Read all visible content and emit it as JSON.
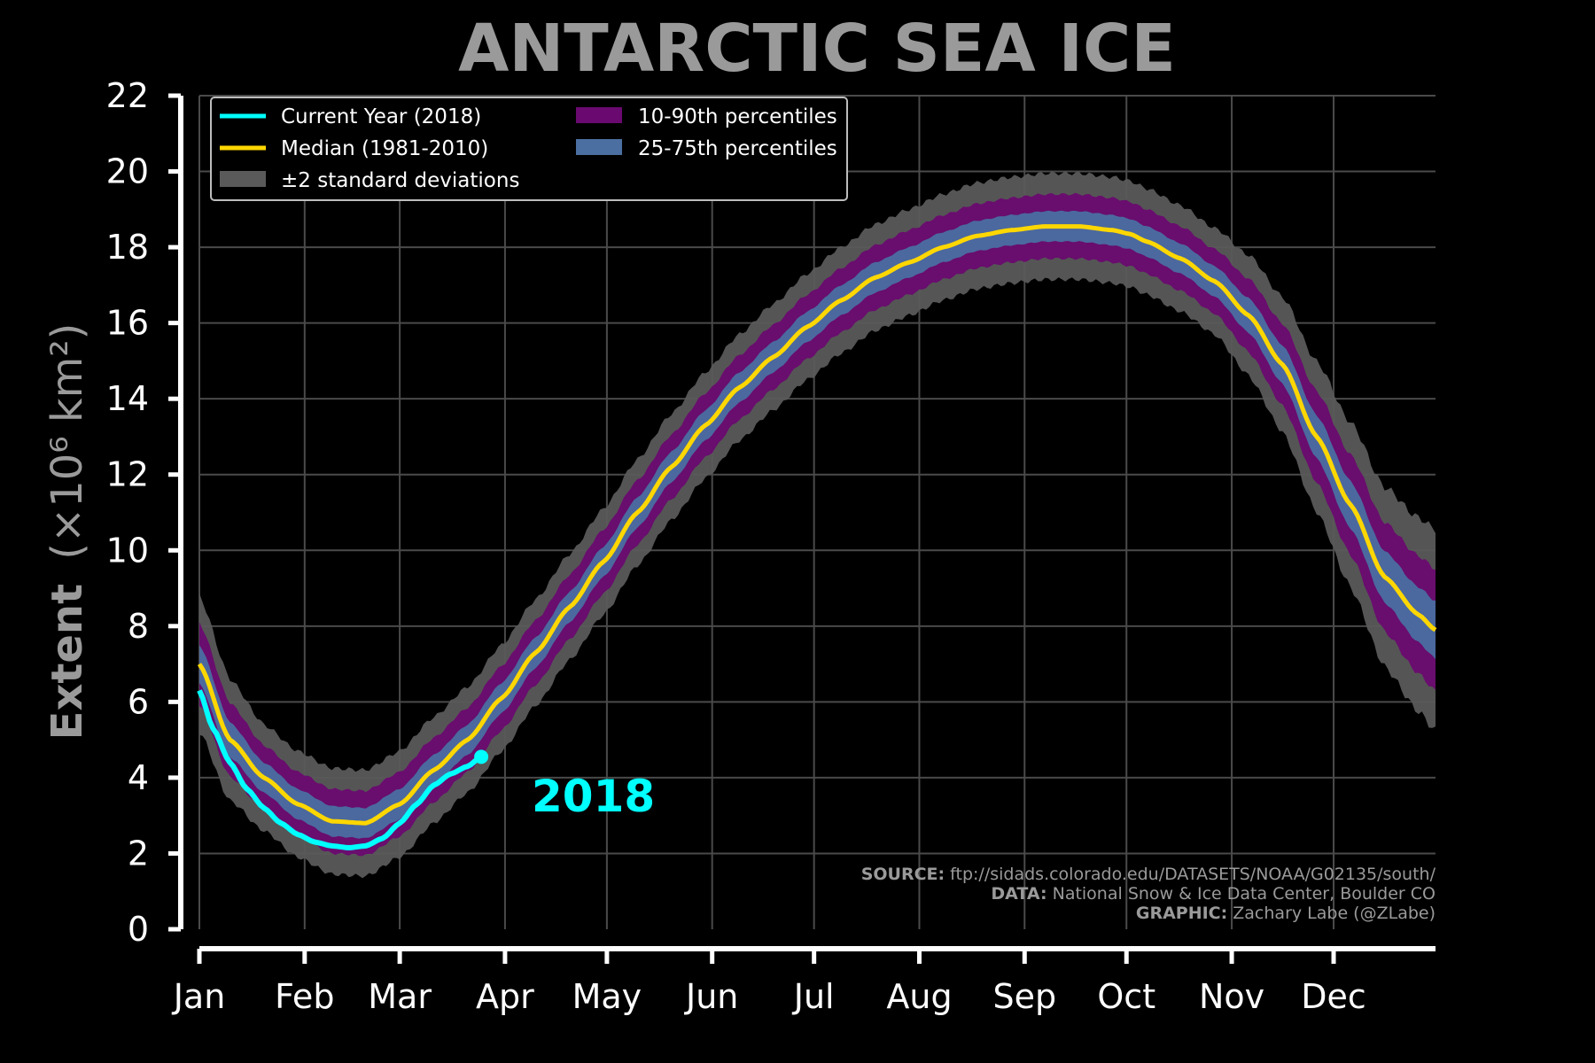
{
  "chart_data": {
    "type": "line",
    "title": "ANTARCTIC SEA ICE",
    "ylabel_bold": "Extent",
    "ylabel_unit": "(×10⁶ km²)",
    "ylim": [
      0,
      22
    ],
    "yticks": [
      0,
      2,
      4,
      6,
      8,
      10,
      12,
      14,
      16,
      18,
      20,
      22
    ],
    "categories": [
      "Jan",
      "Feb",
      "Mar",
      "Apr",
      "May",
      "Jun",
      "Jul",
      "Aug",
      "Sep",
      "Oct",
      "Nov",
      "Dec"
    ],
    "grid": true,
    "legend_placement": "upper-left",
    "series": [
      {
        "name": "Current Year (2018)",
        "color": "#00ffff",
        "x": [
          1,
          5,
          10,
          15,
          20,
          25,
          30,
          35,
          40,
          45,
          50,
          55,
          60,
          65,
          70,
          75,
          80,
          84
        ],
        "values": [
          6.3,
          5.3,
          4.4,
          3.7,
          3.2,
          2.8,
          2.5,
          2.3,
          2.2,
          2.15,
          2.2,
          2.4,
          2.8,
          3.3,
          3.8,
          4.1,
          4.3,
          4.55
        ]
      },
      {
        "name": "Median (1981-2010)",
        "color": "#ffd700",
        "x": [
          1,
          10,
          20,
          30,
          40,
          50,
          60,
          70,
          80,
          90,
          100,
          110,
          120,
          130,
          140,
          150,
          160,
          170,
          180,
          190,
          200,
          210,
          220,
          230,
          240,
          250,
          260,
          270,
          275,
          280,
          290,
          300,
          310,
          320,
          330,
          340,
          350,
          360,
          365
        ],
        "values": [
          7.0,
          5.0,
          4.0,
          3.3,
          2.85,
          2.8,
          3.3,
          4.2,
          5.0,
          6.1,
          7.3,
          8.5,
          9.7,
          11.0,
          12.2,
          13.3,
          14.3,
          15.1,
          15.9,
          16.6,
          17.2,
          17.6,
          18.0,
          18.3,
          18.45,
          18.55,
          18.55,
          18.45,
          18.35,
          18.15,
          17.7,
          17.1,
          16.2,
          14.9,
          13.0,
          11.2,
          9.3,
          8.3,
          7.9
        ]
      }
    ],
    "bands": [
      {
        "name": "±2 standard deviations",
        "color": "#5a5a5a",
        "halfwidth": 1.4
      },
      {
        "name": "10-90th percentiles",
        "color": "#6a0a70",
        "halfwidth": 0.85
      },
      {
        "name": "25-75th percentiles",
        "color": "#4a6fa0",
        "halfwidth": 0.4
      }
    ],
    "annotation": {
      "text": "2018",
      "color": "#00ffff"
    },
    "source": {
      "source_label": "SOURCE:",
      "source_text": " ftp://sidads.colorado.edu/DATASETS/NOAA/G02135/south/",
      "data_label": "DATA:",
      "data_text": " National Snow & Ice Data Center, Boulder CO",
      "graphic_label": "GRAPHIC:",
      "graphic_text": " Zachary Labe (@ZLabe)"
    }
  }
}
